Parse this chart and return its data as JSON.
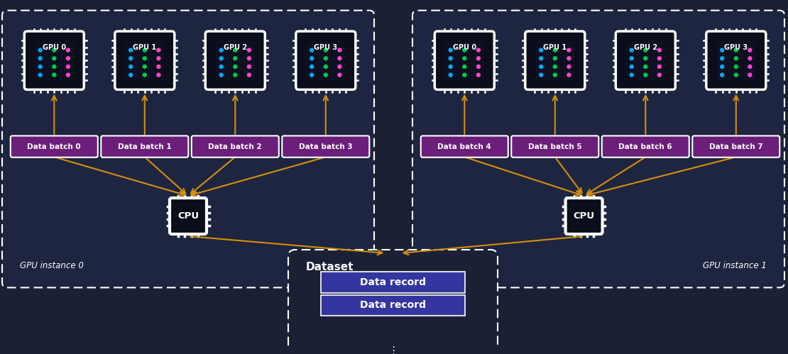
{
  "bg_color": "#1b2035",
  "instance_box_facecolor": "#1e2540",
  "gpu_chip_inner": "#0a0e1a",
  "cpu_chip_inner": "#0a0e1a",
  "data_batch_color": "#6b1f7a",
  "data_record_color": "#3535a0",
  "arrow_color": "#d4900a",
  "white": "#ffffff",
  "dot_colors_col0": "#00aaff",
  "dot_colors_col1": "#00cc44",
  "dot_colors_col2": "#ff44cc",
  "instance0_label": "GPU instance 0",
  "instance1_label": "GPU instance 1",
  "gpus0": [
    "GPU 0",
    "GPU 1",
    "GPU 2",
    "GPU 3"
  ],
  "gpus1": [
    "GPU 0",
    "GPU 1",
    "GPU 2",
    "GPU 3"
  ],
  "batches0": [
    "Data batch 0",
    "Data batch 1",
    "Data batch 2",
    "Data batch 3"
  ],
  "batches1": [
    "Data batch 4",
    "Data batch 5",
    "Data batch 6",
    "Data batch 7"
  ],
  "dataset_label": "Dataset",
  "data_records": [
    "Data record",
    "Data record"
  ],
  "ellipsis": "⋮",
  "figw": 11.1,
  "figh": 4.99,
  "dpi": 100
}
